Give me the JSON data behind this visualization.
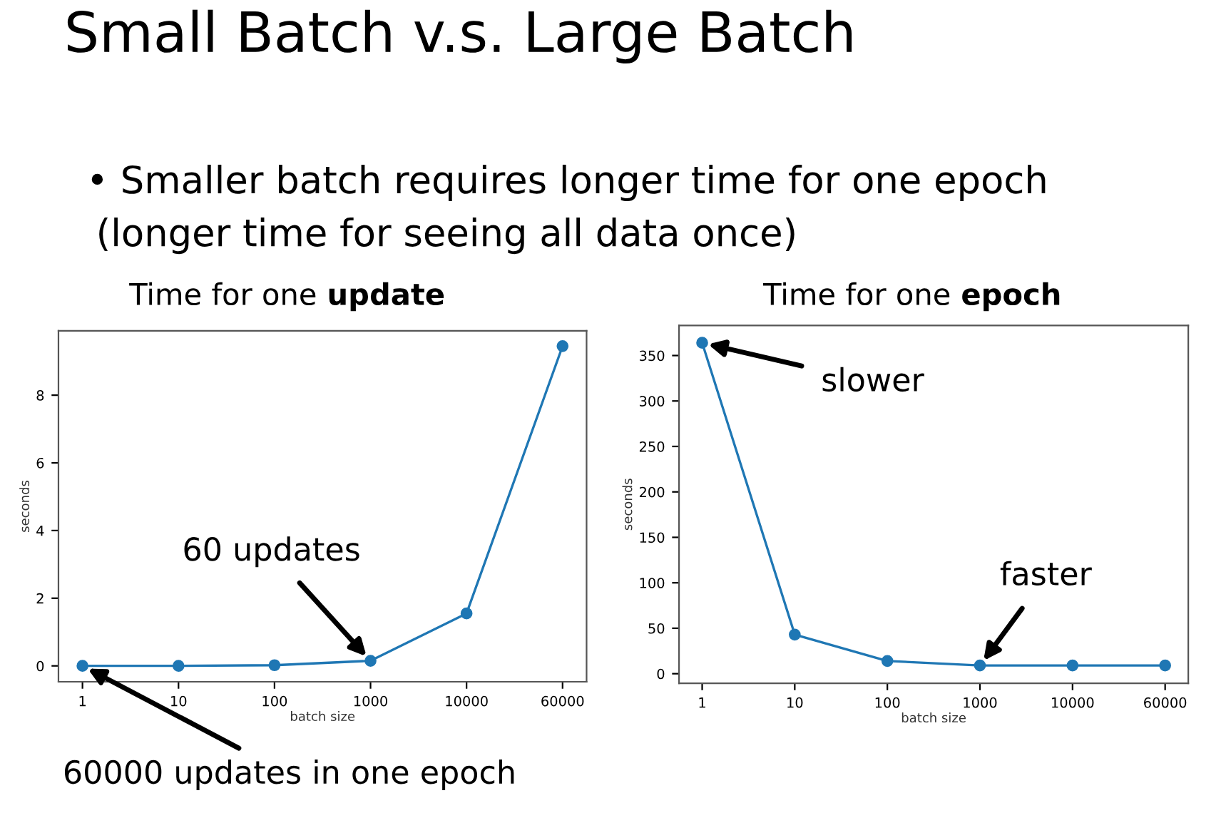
{
  "chart_data": [
    {
      "type": "line",
      "title": "Time for one update",
      "xlabel": "batch size",
      "ylabel": "seconds",
      "categories": [
        "1",
        "10",
        "100",
        "1000",
        "10000",
        "60000"
      ],
      "series": [
        {
          "color": "#1f77b4",
          "values": [
            0.0,
            0.0,
            0.02,
            0.15,
            1.55,
            9.45
          ]
        }
      ],
      "ylim": [
        -0.47,
        9.9
      ],
      "yticks": [
        0,
        2,
        4,
        6,
        8
      ],
      "marker": "circle",
      "line_style": "solid",
      "grid": false,
      "legend": false,
      "annotations": [
        "Small Batch v.s. Large Batch",
        "• Smaller batch requires longer time for one epoch",
        "(longer time for seeing all data once)",
        {
          "text": "60 updates",
          "x": "1000",
          "y": 0.15
        },
        {
          "text": "60000 updates in one epoch",
          "x": "1",
          "y": 0.0
        }
      ]
    },
    {
      "type": "line",
      "title": "Time for one epoch",
      "xlabel": "batch size",
      "ylabel": "seconds",
      "categories": [
        "1",
        "10",
        "100",
        "1000",
        "10000",
        "60000"
      ],
      "series": [
        {
          "color": "#1f77b4",
          "values": [
            364,
            43,
            14,
            9,
            9,
            9
          ]
        }
      ],
      "ylim": [
        -10.5,
        383
      ],
      "yticks": [
        0,
        50,
        100,
        150,
        200,
        250,
        300,
        350
      ],
      "marker": "circle",
      "line_style": "solid",
      "grid": false,
      "legend": false,
      "annotations": [
        {
          "text": "slower",
          "x": "1",
          "y": 364
        },
        {
          "text": "faster",
          "x": "1000",
          "y": 9
        }
      ]
    }
  ]
}
